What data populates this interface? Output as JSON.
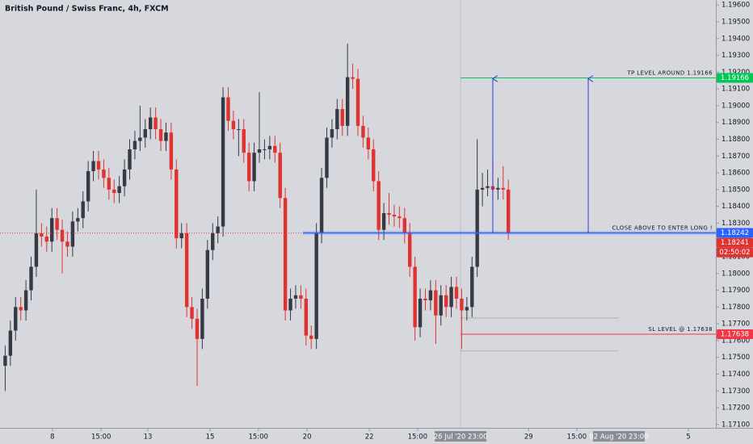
{
  "chart_data": {
    "type": "candlestick",
    "title": "British Pound / Swiss Franc, 4h, FXCM",
    "up_color": "#363a45",
    "down_color": "#e0332f",
    "open": [
      1.1745,
      1.1751,
      1.1766,
      1.178,
      1.1778,
      1.179,
      1.1804,
      1.1824,
      1.1822,
      1.1819,
      1.1833,
      1.1826,
      1.1819,
      1.1816,
      1.1831,
      1.1833,
      1.1843,
      1.1861,
      1.1867,
      1.1862,
      1.1857,
      1.185,
      1.1848,
      1.1852,
      1.1862,
      1.1874,
      1.1879,
      1.1881,
      1.1886,
      1.1893,
      1.1886,
      1.1879,
      1.1884,
      1.1862,
      1.1821,
      1.1824,
      1.178,
      1.1773,
      1.1761,
      1.1785,
      1.1814,
      1.1824,
      1.1828,
      1.1905,
      1.1891,
      1.1886,
      1.1886,
      1.1872,
      1.1855,
      1.1872,
      1.1874,
      1.1874,
      1.1876,
      1.1872,
      1.1845,
      1.1778,
      1.1785,
      1.1787,
      1.1785,
      1.1763,
      1.1761,
      1.1824,
      1.1857,
      1.1881,
      1.1886,
      1.1898,
      1.1888,
      1.1917,
      1.1916,
      1.1888,
      1.1881,
      1.1874,
      1.1855,
      1.1826,
      1.1836,
      1.1835,
      1.1834,
      1.1833,
      1.1824,
      1.1804,
      1.1768,
      1.1785,
      1.1784,
      1.179,
      1.1775,
      1.1787,
      1.178,
      1.1792,
      1.1785,
      1.1778,
      1.178,
      1.1804,
      1.185,
      1.1851,
      1.1852,
      1.185,
      1.1851,
      1.185
    ],
    "high": [
      1.1757,
      1.1772,
      1.1786,
      1.1786,
      1.1796,
      1.181,
      1.185,
      1.183,
      1.1828,
      1.1839,
      1.1839,
      1.1832,
      1.1825,
      1.1837,
      1.1839,
      1.1849,
      1.1867,
      1.1873,
      1.1873,
      1.1868,
      1.1863,
      1.1856,
      1.1858,
      1.1868,
      1.188,
      1.1885,
      1.19,
      1.1892,
      1.1899,
      1.1899,
      1.1892,
      1.189,
      1.189,
      1.1868,
      1.183,
      1.183,
      1.1786,
      1.1779,
      1.1791,
      1.182,
      1.183,
      1.1834,
      1.1911,
      1.1911,
      1.1897,
      1.1892,
      1.1892,
      1.1878,
      1.1878,
      1.1908,
      1.188,
      1.1882,
      1.1882,
      1.1878,
      1.1851,
      1.1791,
      1.1793,
      1.1793,
      1.1791,
      1.1769,
      1.183,
      1.1863,
      1.1887,
      1.1892,
      1.1904,
      1.1904,
      1.1937,
      1.1925,
      1.1922,
      1.1894,
      1.1887,
      1.188,
      1.1861,
      1.1842,
      1.1848,
      1.1841,
      1.184,
      1.1839,
      1.183,
      1.181,
      1.1791,
      1.1791,
      1.1796,
      1.1796,
      1.1793,
      1.1793,
      1.1798,
      1.1798,
      1.1791,
      1.1786,
      1.181,
      1.188,
      1.186,
      1.1862,
      1.1868,
      1.1857,
      1.1864,
      1.1856
    ],
    "low": [
      1.173,
      1.1745,
      1.176,
      1.1772,
      1.1772,
      1.1784,
      1.1798,
      1.1816,
      1.1813,
      1.1813,
      1.182,
      1.18,
      1.181,
      1.181,
      1.1825,
      1.1827,
      1.1837,
      1.1855,
      1.1856,
      1.1851,
      1.1844,
      1.1842,
      1.1842,
      1.1846,
      1.1856,
      1.1868,
      1.1873,
      1.1875,
      1.188,
      1.188,
      1.1873,
      1.1873,
      1.1856,
      1.1815,
      1.1815,
      1.1774,
      1.1767,
      1.1733,
      1.1755,
      1.1779,
      1.1808,
      1.1818,
      1.1822,
      1.1885,
      1.188,
      1.187,
      1.1866,
      1.1849,
      1.1849,
      1.1866,
      1.1868,
      1.1868,
      1.1866,
      1.1839,
      1.1772,
      1.1772,
      1.1779,
      1.1779,
      1.1757,
      1.1755,
      1.1755,
      1.1818,
      1.1851,
      1.1875,
      1.188,
      1.1882,
      1.1882,
      1.191,
      1.1882,
      1.1875,
      1.1868,
      1.1849,
      1.182,
      1.182,
      1.1829,
      1.1828,
      1.1827,
      1.1818,
      1.1798,
      1.176,
      1.1762,
      1.1778,
      1.1778,
      1.1758,
      1.1769,
      1.1774,
      1.1774,
      1.1779,
      1.1755,
      1.1772,
      1.1774,
      1.1798,
      1.184,
      1.1846,
      1.1844,
      1.1844,
      1.1844,
      1.182
    ],
    "close": [
      1.1751,
      1.1766,
      1.178,
      1.1778,
      1.179,
      1.1804,
      1.1824,
      1.1822,
      1.1819,
      1.1833,
      1.1826,
      1.1819,
      1.1816,
      1.1831,
      1.1833,
      1.1843,
      1.1861,
      1.1867,
      1.1862,
      1.1857,
      1.185,
      1.1848,
      1.1852,
      1.1862,
      1.1874,
      1.1879,
      1.1881,
      1.1886,
      1.1893,
      1.1886,
      1.1879,
      1.1884,
      1.1862,
      1.1821,
      1.1824,
      1.178,
      1.1773,
      1.1761,
      1.1785,
      1.1814,
      1.1824,
      1.1828,
      1.1905,
      1.1891,
      1.1886,
      1.1886,
      1.1872,
      1.1855,
      1.1872,
      1.1874,
      1.1874,
      1.1876,
      1.1872,
      1.1845,
      1.1778,
      1.1785,
      1.1787,
      1.1785,
      1.1763,
      1.1761,
      1.1824,
      1.1857,
      1.1881,
      1.1886,
      1.1898,
      1.1888,
      1.1917,
      1.1916,
      1.1888,
      1.1881,
      1.1874,
      1.1855,
      1.1826,
      1.1836,
      1.1835,
      1.1834,
      1.1833,
      1.1824,
      1.1804,
      1.1768,
      1.1785,
      1.1784,
      1.179,
      1.1775,
      1.1787,
      1.178,
      1.1792,
      1.1785,
      1.1778,
      1.178,
      1.1804,
      1.185,
      1.1851,
      1.1852,
      1.185,
      1.1851,
      1.185,
      1.1824
    ],
    "xlim": [
      -1,
      137
    ],
    "xticks": [
      {
        "value": 9.1,
        "label": "8"
      },
      {
        "value": 18.5,
        "label": "15:00"
      },
      {
        "value": 27.5,
        "label": "13"
      },
      {
        "value": 39.5,
        "label": "15"
      },
      {
        "value": 48.8,
        "label": "15:00"
      },
      {
        "value": 58.2,
        "label": "20"
      },
      {
        "value": 70.2,
        "label": "22"
      },
      {
        "value": 79.5,
        "label": "15:00"
      },
      {
        "value": 100.9,
        "label": "29"
      },
      {
        "value": 110.2,
        "label": "15:00"
      },
      {
        "value": 131.7,
        "label": "5"
      }
    ],
    "date_range": {
      "start": {
        "value": 87.8,
        "label": "26 Jul '20 23:00"
      },
      "end": {
        "value": 118.3,
        "label": "02 Aug '20 23:00"
      }
    },
    "ylim": [
      1.1708,
      1.1963
    ],
    "yticks": [
      {
        "value": 1.196,
        "label": "1.19600"
      },
      {
        "value": 1.195,
        "label": "1.19500"
      },
      {
        "value": 1.194,
        "label": "1.19400"
      },
      {
        "value": 1.193,
        "label": "1.19300"
      },
      {
        "value": 1.192,
        "label": "1.19200"
      },
      {
        "value": 1.191,
        "label": "1.19100"
      },
      {
        "value": 1.19,
        "label": "1.19000"
      },
      {
        "value": 1.189,
        "label": "1.18900"
      },
      {
        "value": 1.188,
        "label": "1.18800"
      },
      {
        "value": 1.187,
        "label": "1.18700"
      },
      {
        "value": 1.186,
        "label": "1.18600"
      },
      {
        "value": 1.185,
        "label": "1.18500"
      },
      {
        "value": 1.184,
        "label": "1.18400"
      },
      {
        "value": 1.183,
        "label": "1.18300"
      },
      {
        "value": 1.182,
        "label": "1.18200"
      },
      {
        "value": 1.181,
        "label": "1.18100"
      },
      {
        "value": 1.18,
        "label": "1.18000"
      },
      {
        "value": 1.179,
        "label": "1.17900"
      },
      {
        "value": 1.178,
        "label": "1.17800"
      },
      {
        "value": 1.177,
        "label": "1.17700"
      },
      {
        "value": 1.176,
        "label": "1.17600"
      },
      {
        "value": 1.175,
        "label": "1.17500"
      },
      {
        "value": 1.174,
        "label": "1.17400"
      },
      {
        "value": 1.173,
        "label": "1.17300"
      },
      {
        "value": 1.172,
        "label": "1.17200"
      },
      {
        "value": 1.171,
        "label": "1.17100"
      }
    ],
    "levels": [
      {
        "value": 1.19166,
        "text": "TP LEVEL AROUND 1.19166",
        "color": "#00c853"
      },
      {
        "value": 1.18242,
        "text": "CLOSE ABOVE TO ENTER LONG !",
        "color": "#2962ff",
        "start": 57.4
      },
      {
        "value": 1.17638,
        "text": "SL LEVEL @ 1.17638",
        "color": "#f23645"
      }
    ],
    "guides": [
      1.17735,
      1.17538
    ],
    "arrows": [
      {
        "x": 94,
        "from": 1.18242,
        "to": 1.19166
      },
      {
        "x": 112.4,
        "from": 1.18242,
        "to": 1.19166
      }
    ],
    "last_price": 1.18241,
    "countdown": "02:50:02"
  }
}
